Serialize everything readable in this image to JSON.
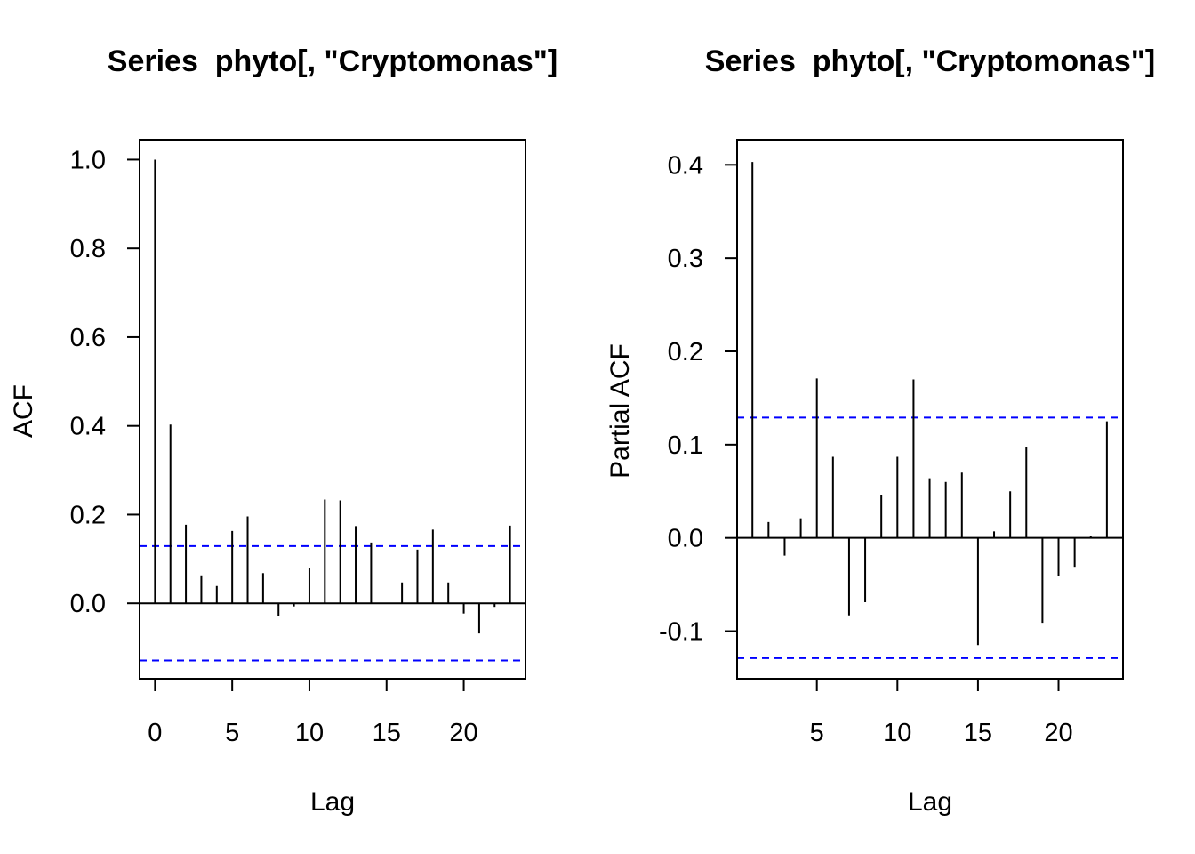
{
  "chart_data": [
    {
      "type": "bar",
      "title": "Series  phyto[, \"Cryptomonas\"]",
      "xlabel": "Lag",
      "ylabel": "ACF",
      "xlim": [
        -1,
        24
      ],
      "ylim": [
        -0.17,
        1.045
      ],
      "x_ticks": [
        0,
        5,
        10,
        15,
        20
      ],
      "x_tick_labels": [
        "0",
        "5",
        "10",
        "15",
        "20"
      ],
      "y_ticks": [
        0.0,
        0.2,
        0.4,
        0.6,
        0.8,
        1.0
      ],
      "y_tick_labels": [
        "0.0",
        "0.2",
        "0.4",
        "0.6",
        "0.8",
        "1.0"
      ],
      "ci": 0.129,
      "lags": [
        0,
        1,
        2,
        3,
        4,
        5,
        6,
        7,
        8,
        9,
        10,
        11,
        12,
        13,
        14,
        15,
        16,
        17,
        18,
        19,
        20,
        21,
        22,
        23
      ],
      "values": [
        1.0,
        0.403,
        0.177,
        0.063,
        0.039,
        0.163,
        0.196,
        0.068,
        -0.028,
        -0.007,
        0.08,
        0.234,
        0.232,
        0.174,
        0.137,
        0.0,
        0.047,
        0.121,
        0.166,
        0.047,
        -0.023,
        -0.068,
        -0.008,
        0.175
      ],
      "grid": false,
      "ci_color": "#0000ff"
    },
    {
      "type": "bar",
      "title": "Series  phyto[, \"Cryptomonas\"]",
      "xlabel": "Lag",
      "ylabel": "Partial ACF",
      "xlim": [
        0.05,
        24
      ],
      "ylim": [
        -0.151,
        0.427
      ],
      "x_ticks": [
        5,
        10,
        15,
        20
      ],
      "x_tick_labels": [
        "5",
        "10",
        "15",
        "20"
      ],
      "y_ticks": [
        -0.1,
        0.0,
        0.1,
        0.2,
        0.3,
        0.4
      ],
      "y_tick_labels": [
        "-0.1",
        "0.0",
        "0.1",
        "0.2",
        "0.3",
        "0.4"
      ],
      "ci": 0.129,
      "lags": [
        1,
        2,
        3,
        4,
        5,
        6,
        7,
        8,
        9,
        10,
        11,
        12,
        13,
        14,
        15,
        16,
        17,
        18,
        19,
        20,
        21,
        22,
        23
      ],
      "values": [
        0.403,
        0.017,
        -0.019,
        0.021,
        0.171,
        0.087,
        -0.083,
        -0.069,
        0.046,
        0.087,
        0.17,
        0.064,
        0.06,
        0.07,
        -0.115,
        0.007,
        0.05,
        0.097,
        -0.091,
        -0.041,
        -0.031,
        0.002,
        0.125
      ],
      "grid": false,
      "ci_color": "#0000ff"
    }
  ]
}
